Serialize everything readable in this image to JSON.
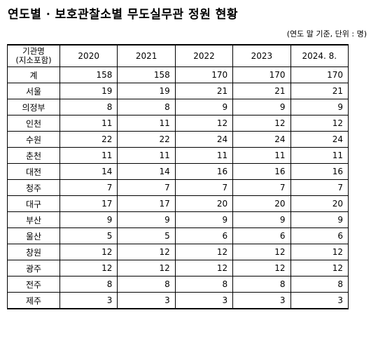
{
  "title": "연도별 · 보호관찰소별 무도실무관 정원 현황",
  "unit_note": "(연도 말 기준, 단위 : 명)",
  "table": {
    "header_region_line1": "기관명",
    "header_region_line2": "(지소포함)",
    "years": [
      "2020",
      "2021",
      "2022",
      "2023",
      "2024. 8."
    ],
    "rows": [
      {
        "region": "계",
        "values": [
          "158",
          "158",
          "170",
          "170",
          "170"
        ]
      },
      {
        "region": "서울",
        "values": [
          "19",
          "19",
          "21",
          "21",
          "21"
        ]
      },
      {
        "region": "의정부",
        "values": [
          "8",
          "8",
          "9",
          "9",
          "9"
        ]
      },
      {
        "region": "인천",
        "values": [
          "11",
          "11",
          "12",
          "12",
          "12"
        ]
      },
      {
        "region": "수원",
        "values": [
          "22",
          "22",
          "24",
          "24",
          "24"
        ]
      },
      {
        "region": "춘천",
        "values": [
          "11",
          "11",
          "11",
          "11",
          "11"
        ]
      },
      {
        "region": "대전",
        "values": [
          "14",
          "14",
          "16",
          "16",
          "16"
        ]
      },
      {
        "region": "청주",
        "values": [
          "7",
          "7",
          "7",
          "7",
          "7"
        ]
      },
      {
        "region": "대구",
        "values": [
          "17",
          "17",
          "20",
          "20",
          "20"
        ]
      },
      {
        "region": "부산",
        "values": [
          "9",
          "9",
          "9",
          "9",
          "9"
        ]
      },
      {
        "region": "울산",
        "values": [
          "5",
          "5",
          "6",
          "6",
          "6"
        ]
      },
      {
        "region": "창원",
        "values": [
          "12",
          "12",
          "12",
          "12",
          "12"
        ]
      },
      {
        "region": "광주",
        "values": [
          "12",
          "12",
          "12",
          "12",
          "12"
        ]
      },
      {
        "region": "전주",
        "values": [
          "8",
          "8",
          "8",
          "8",
          "8"
        ]
      },
      {
        "region": "제주",
        "values": [
          "3",
          "3",
          "3",
          "3",
          "3"
        ]
      }
    ]
  }
}
